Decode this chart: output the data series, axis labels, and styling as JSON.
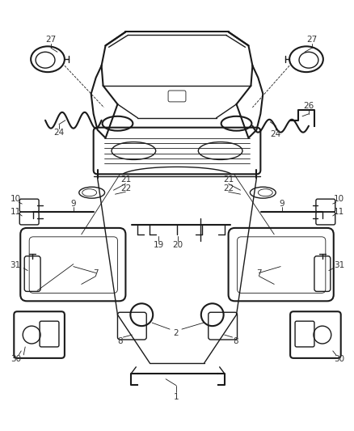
{
  "bg_color": "#ffffff",
  "line_color": "#1a1a1a",
  "fig_width": 4.39,
  "fig_height": 5.33,
  "dpi": 100
}
